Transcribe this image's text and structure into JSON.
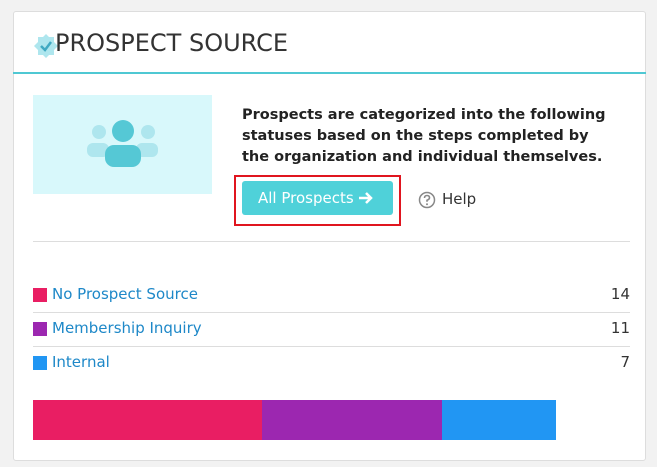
{
  "header": {
    "title": "PROSPECT SOURCE"
  },
  "intro": {
    "text": "Prospects are categorized into the following statuses based on the steps completed by the organization and individual themselves."
  },
  "buttons": {
    "all_prospects": "All Prospects",
    "help": "Help"
  },
  "sources": [
    {
      "name": "No Prospect Source",
      "color": "#e91e63",
      "count": 14
    },
    {
      "name": "Membership Inquiry",
      "color": "#9c27b0",
      "count": 11
    },
    {
      "name": "Internal",
      "color": "#2196f3",
      "count": 7
    }
  ]
}
